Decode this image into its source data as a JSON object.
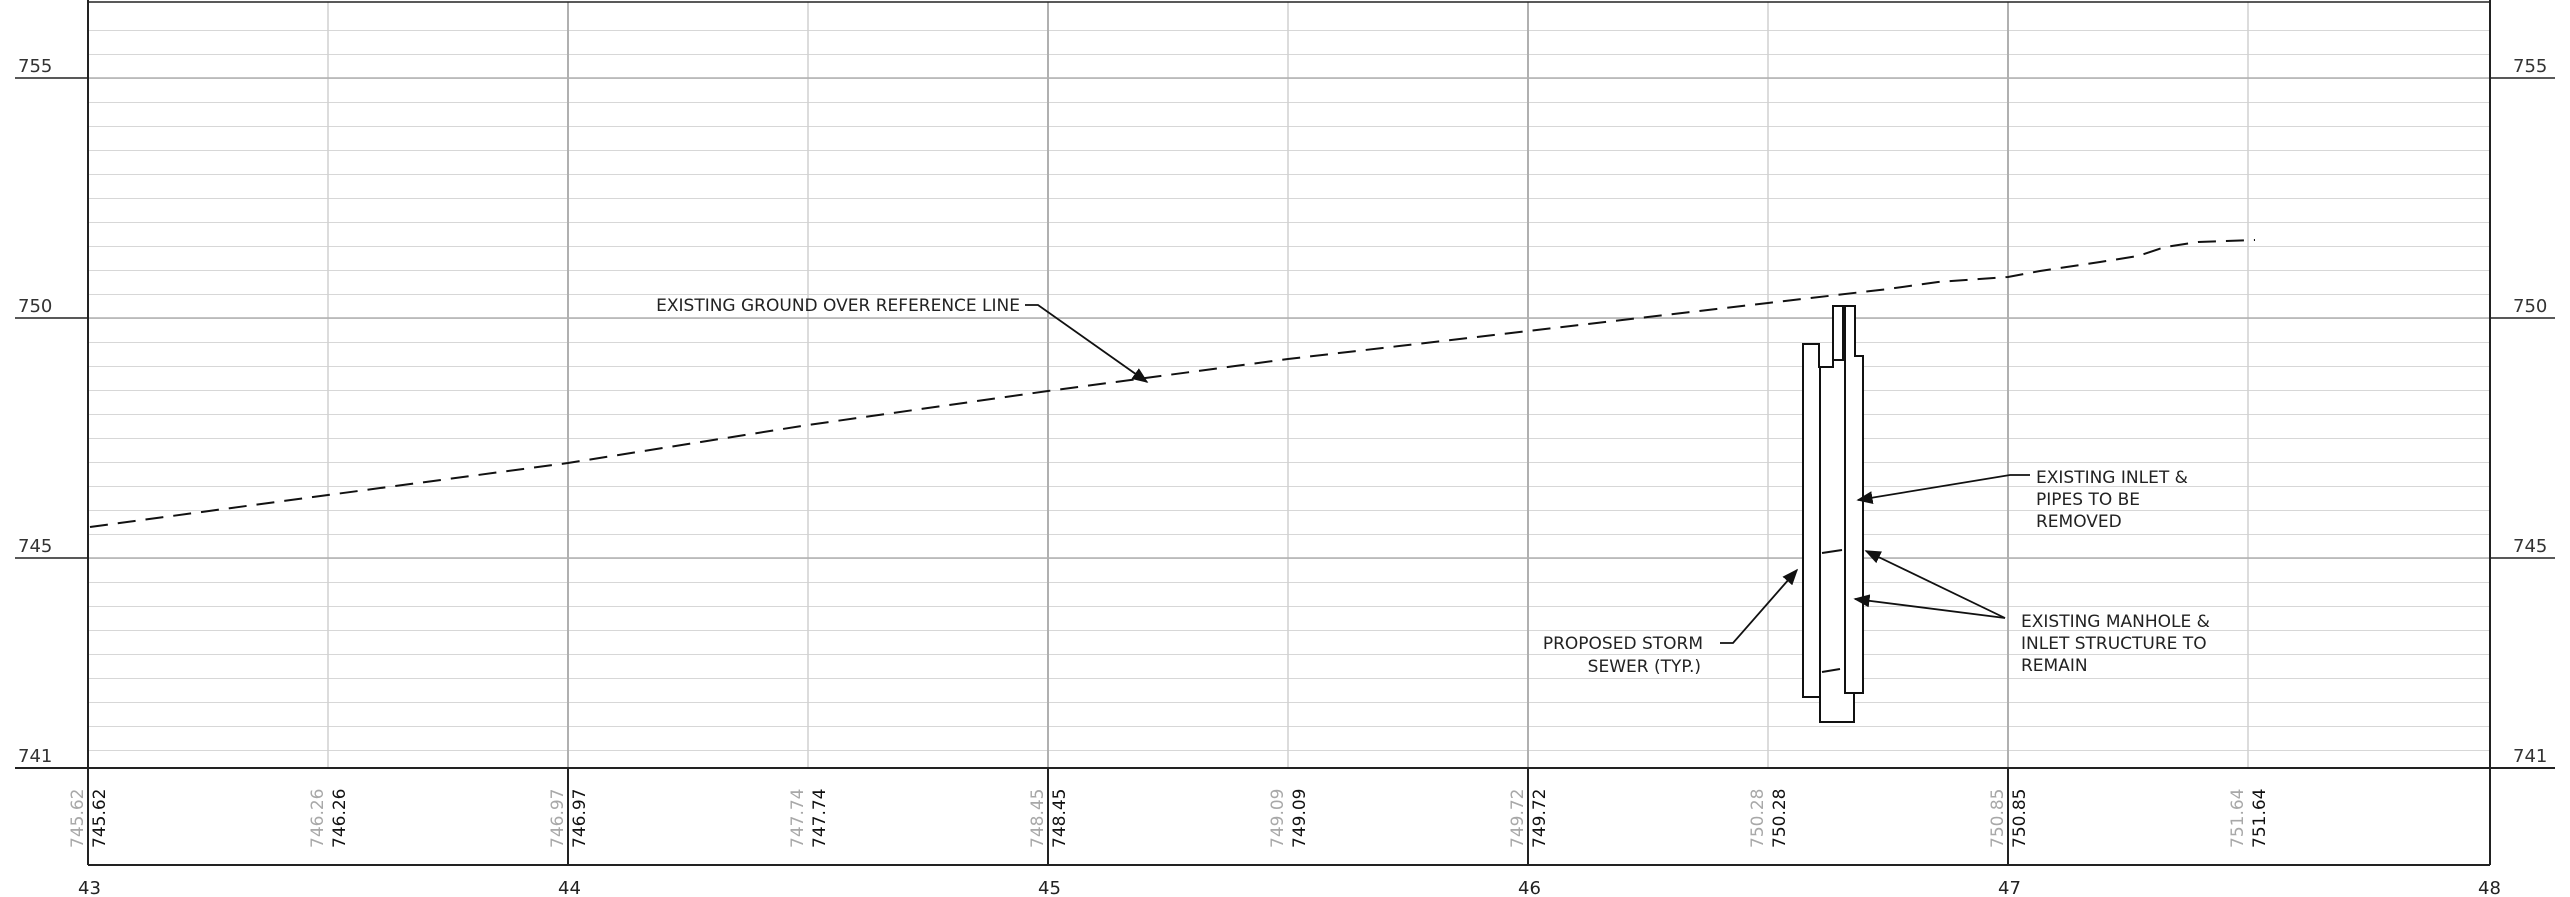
{
  "elevations": {
    "left": [
      "755",
      "750",
      "745",
      "741"
    ],
    "right": [
      "755",
      "750",
      "745",
      "741"
    ]
  },
  "stations": [
    "43",
    "44",
    "45",
    "46",
    "47",
    "48"
  ],
  "grades": [
    {
      "old": "745.62",
      "new": "745.62"
    },
    {
      "old": "746.26",
      "new": "746.26"
    },
    {
      "old": "746.97",
      "new": "746.97"
    },
    {
      "old": "747.74",
      "new": "747.74"
    },
    {
      "old": "748.45",
      "new": "748.45"
    },
    {
      "old": "749.09",
      "new": "749.09"
    },
    {
      "old": "749.72",
      "new": "749.72"
    },
    {
      "old": "750.28",
      "new": "750.28"
    },
    {
      "old": "750.85",
      "new": "750.85"
    },
    {
      "old": "751.64",
      "new": "751.64"
    }
  ],
  "annotations": {
    "existing_ground": "EXISTING GROUND OVER REFERENCE LINE",
    "inlet_removed": [
      "EXISTING INLET &",
      "PIPES TO BE",
      "REMOVED"
    ],
    "manhole_remain": [
      "EXISTING MANHOLE &",
      "INLET STRUCTURE TO",
      "REMAIN"
    ],
    "storm_sewer": [
      "PROPOSED STORM",
      "SEWER (TYP.)"
    ]
  }
}
